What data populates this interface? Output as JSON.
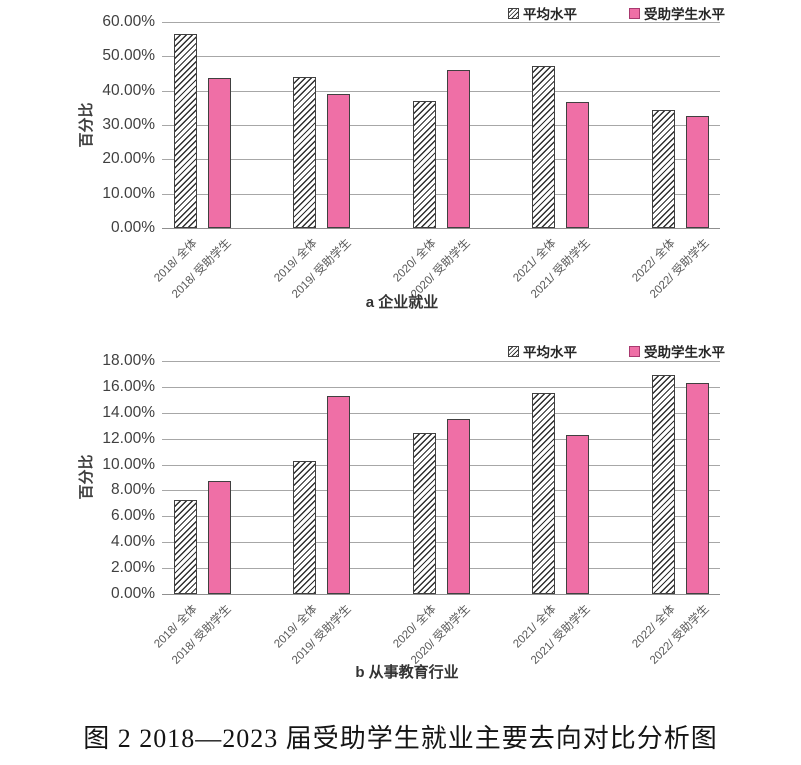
{
  "figure": {
    "caption": "图 2  2018—2023 届受助学生就业主要去向对比分析图"
  },
  "colors": {
    "pink": "#EF6FA6",
    "bar_outline": "#404040",
    "hatch_stroke": "#2E2E2E",
    "gridline": "#A7A7A7",
    "axis_line": "#8F8F8F",
    "ytick_text": "#404040",
    "xtick_text": "#595959",
    "title_text": "#333333",
    "legend_text": "#262626"
  },
  "legend": {
    "items": [
      {
        "label": "平均水平",
        "swatch": "hatched-square-icon"
      },
      {
        "label": "受助学生水平",
        "swatch": "pink-square-icon"
      }
    ]
  },
  "chart_data": [
    {
      "type": "bar",
      "panel": "a",
      "title": "a 企业就业",
      "xlabel": "",
      "ylabel": "百分比",
      "ylim": [
        0,
        60
      ],
      "ytick_step": 10,
      "ytick_labels": [
        "60.00%",
        "50.00%",
        "40.00%",
        "30.00%",
        "20.00%",
        "10.00%",
        "0.00%"
      ],
      "grid": true,
      "legend_position": "top-right",
      "categories": [
        "2018/ 全体",
        "2018/ 受助学生",
        "2019/ 全体",
        "2019/ 受助学生",
        "2020/ 全体",
        "2020/ 受助学生",
        "2021/ 全体",
        "2021/ 受助学生",
        "2022/ 全体",
        "2022/ 受助学生"
      ],
      "series": [
        {
          "name": "平均水平",
          "pattern": "hatched",
          "category_indices": [
            0,
            2,
            4,
            6,
            8
          ],
          "values": [
            56.5,
            43.9,
            36.9,
            47.1,
            34.5
          ]
        },
        {
          "name": "受助学生水平",
          "pattern": "solid-pink",
          "category_indices": [
            1,
            3,
            5,
            7,
            9
          ],
          "values": [
            43.7,
            38.9,
            46.0,
            36.8,
            32.5
          ]
        }
      ]
    },
    {
      "type": "bar",
      "panel": "b",
      "title": "b 从事教育行业",
      "xlabel": "",
      "ylabel": "百分比",
      "ylim": [
        0,
        18
      ],
      "ytick_step": 2,
      "ytick_labels": [
        "18.00%",
        "16.00%",
        "14.00%",
        "12.00%",
        "10.00%",
        "8.00%",
        "6.00%",
        "4.00%",
        "2.00%",
        "0.00%"
      ],
      "grid": true,
      "legend_position": "top-right",
      "categories": [
        "2018/ 全体",
        "2018/ 受助学生",
        "2019/ 全体",
        "2019/ 受助学生",
        "2020/ 全体",
        "2020/ 受助学生",
        "2021/ 全体",
        "2021/ 受助学生",
        "2022/ 全体",
        "2022/ 受助学生"
      ],
      "series": [
        {
          "name": "平均水平",
          "pattern": "hatched",
          "category_indices": [
            0,
            2,
            4,
            6,
            8
          ],
          "values": [
            7.3,
            10.3,
            12.4,
            15.5,
            16.9
          ]
        },
        {
          "name": "受助学生水平",
          "pattern": "solid-pink",
          "category_indices": [
            1,
            3,
            5,
            7,
            9
          ],
          "values": [
            8.7,
            15.3,
            13.5,
            12.3,
            16.3
          ]
        }
      ]
    }
  ]
}
